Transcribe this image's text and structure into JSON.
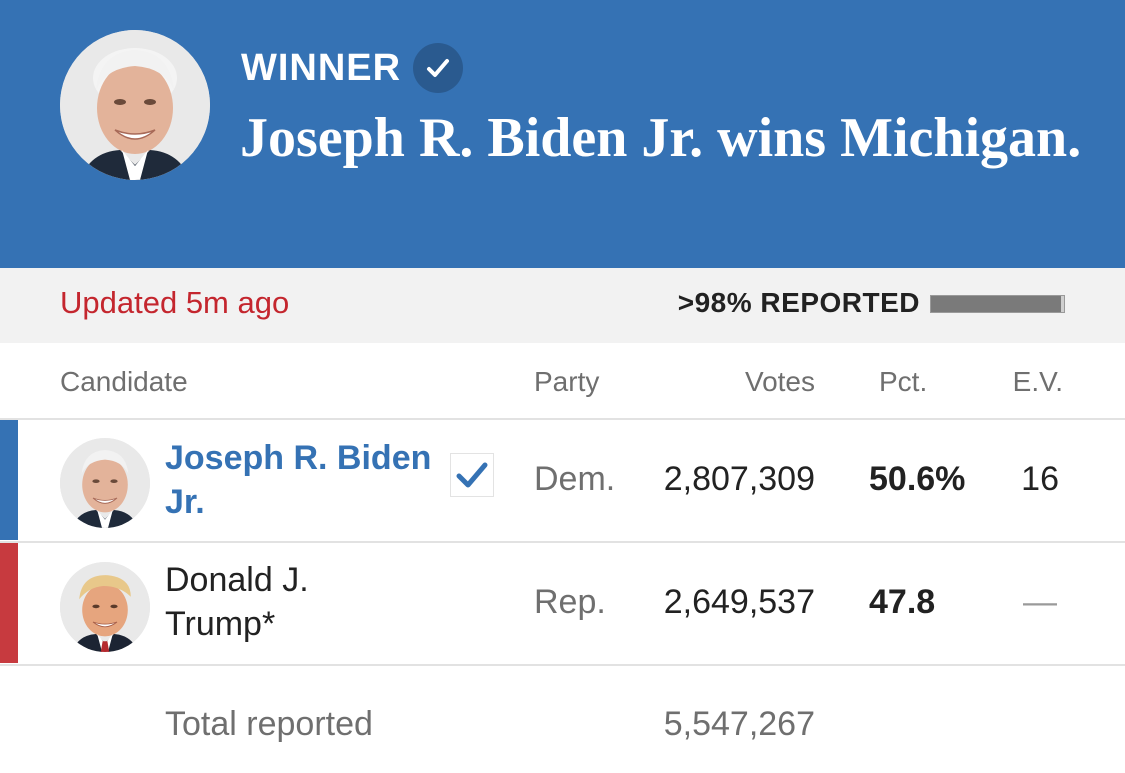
{
  "header": {
    "winner_label": "WINNER",
    "headline": "Joseph R. Biden Jr. wins Michigan.",
    "background_color": "#3572b4"
  },
  "status": {
    "updated": "Updated 5m ago",
    "reported": ">98% REPORTED",
    "reported_fraction": 0.98
  },
  "table": {
    "columns": {
      "candidate": "Candidate",
      "party": "Party",
      "votes": "Votes",
      "pct": "Pct.",
      "ev": "E.V."
    },
    "rows": [
      {
        "name_line1": "Joseph R. Biden",
        "name_line2": "Jr.",
        "party": "Dem.",
        "votes": "2,807,309",
        "pct": "50.6%",
        "ev": "16",
        "winner": true,
        "party_color": "#3572b4"
      },
      {
        "name_line1": "Donald J.",
        "name_line2": "Trump*",
        "party": "Rep.",
        "votes": "2,649,537",
        "pct": "47.8",
        "ev": "—",
        "winner": false,
        "party_color": "#c73a3f"
      }
    ],
    "total_label": "Total reported",
    "total_votes": "5,547,267"
  }
}
